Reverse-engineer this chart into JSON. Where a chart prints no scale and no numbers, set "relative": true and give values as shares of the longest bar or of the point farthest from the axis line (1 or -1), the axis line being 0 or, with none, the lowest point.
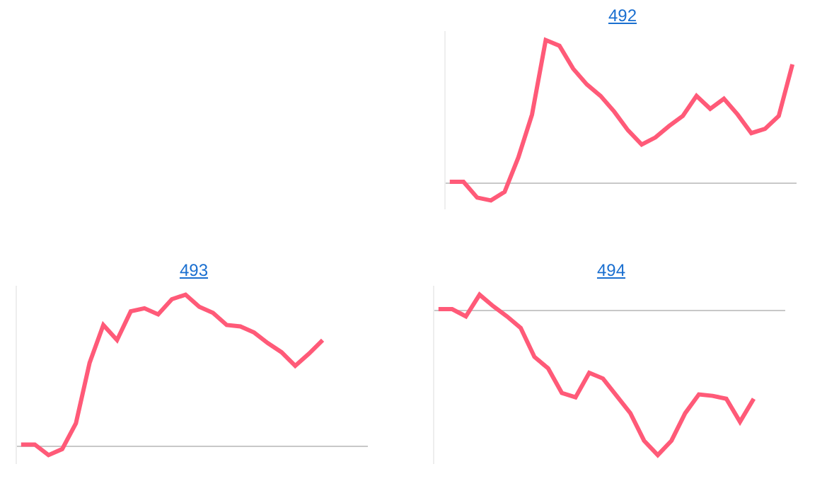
{
  "chart_data": [
    {
      "type": "line",
      "title": "492",
      "relative": true,
      "tick_labels": false,
      "categories": [
        null,
        null,
        null,
        null,
        null,
        null,
        null,
        null,
        null,
        null,
        null,
        null,
        null,
        null,
        null,
        null,
        null,
        null,
        null,
        null,
        null,
        null,
        null,
        null,
        null,
        null
      ],
      "series": [
        {
          "color": "#ff5a78",
          "values": [
            0.01,
            0.01,
            -0.1,
            -0.12,
            -0.06,
            0.18,
            0.48,
            1,
            0.96,
            0.8,
            0.69,
            0.61,
            0.5,
            0.37,
            0.27,
            0.32,
            0.4,
            0.47,
            0.61,
            0.52,
            0.59,
            0.48,
            0.35,
            0.38,
            0.47,
            0.83
          ]
        }
      ]
    },
    {
      "type": "line",
      "title": "493",
      "relative": true,
      "tick_labels": false,
      "categories": [
        null,
        null,
        null,
        null,
        null,
        null,
        null,
        null,
        null,
        null,
        null,
        null,
        null,
        null,
        null,
        null,
        null,
        null,
        null,
        null,
        null,
        null,
        null,
        null,
        null,
        null
      ],
      "series": [
        {
          "color": "#ff5a78",
          "values": [
            0.01,
            0.01,
            -0.06,
            -0.02,
            0.15,
            0.55,
            0.8,
            0.7,
            0.89,
            0.91,
            0.87,
            0.97,
            1,
            0.92,
            0.88,
            0.8,
            0.79,
            0.75,
            0.68,
            0.62,
            0.53,
            0.61,
            0.7,
            null,
            null,
            null
          ]
        }
      ]
    },
    {
      "type": "line",
      "title": "494",
      "relative": true,
      "tick_labels": false,
      "categories": [
        null,
        null,
        null,
        null,
        null,
        null,
        null,
        null,
        null,
        null,
        null,
        null,
        null,
        null,
        null,
        null,
        null,
        null,
        null,
        null,
        null,
        null,
        null,
        null,
        null,
        null
      ],
      "series": [
        {
          "color": "#ff5a78",
          "values": [
            0.01,
            0.01,
            -0.04,
            0.11,
            0.03,
            -0.04,
            -0.12,
            -0.32,
            -0.4,
            -0.57,
            -0.6,
            -0.43,
            -0.47,
            -0.59,
            -0.71,
            -0.9,
            -1,
            -0.9,
            -0.71,
            -0.58,
            -0.59,
            -0.61,
            -0.77,
            -0.61,
            null,
            null
          ]
        }
      ]
    }
  ]
}
